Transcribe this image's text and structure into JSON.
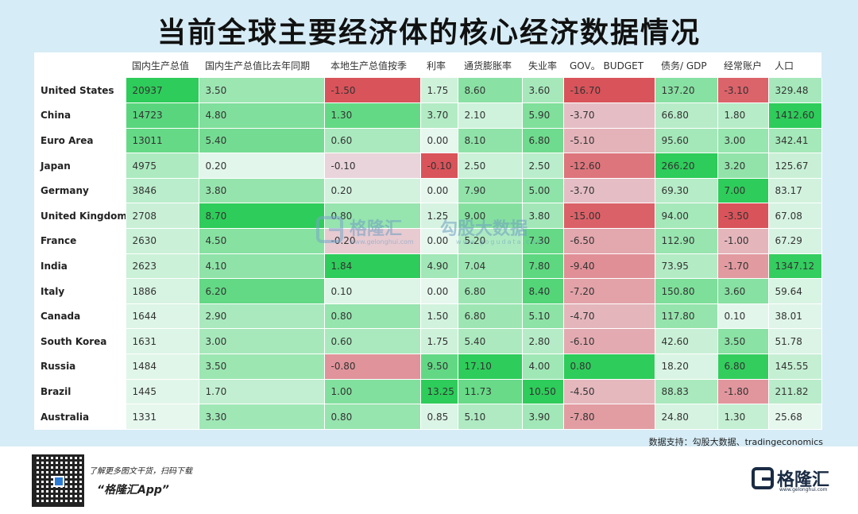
{
  "title": "当前全球主要经济体的核心经济数据情况",
  "columns": [
    "",
    "国内生产总值",
    "国内生产总值比去年同期",
    "本地生产总值按季",
    "利率",
    "通货膨胀率",
    "失业率",
    "GOV。 BUDGET",
    "债务/ GDP",
    "经常账户",
    "人口"
  ],
  "rows": [
    {
      "country": "United States",
      "cells": [
        "20937",
        "3.50",
        "-1.50",
        "1.75",
        "8.60",
        "3.60",
        "-16.70",
        "137.20",
        "-3.10",
        "329.48"
      ]
    },
    {
      "country": "China",
      "cells": [
        "14723",
        "4.80",
        "1.30",
        "3.70",
        "2.10",
        "5.90",
        "-3.70",
        "66.80",
        "1.80",
        "1412.60"
      ]
    },
    {
      "country": "Euro Area",
      "cells": [
        "13011",
        "5.40",
        "0.60",
        "0.00",
        "8.10",
        "6.80",
        "-5.10",
        "95.60",
        "3.00",
        "342.41"
      ]
    },
    {
      "country": "Japan",
      "cells": [
        "4975",
        "0.20",
        "-0.10",
        "-0.10",
        "2.50",
        "2.50",
        "-12.60",
        "266.20",
        "3.20",
        "125.67"
      ]
    },
    {
      "country": "Germany",
      "cells": [
        "3846",
        "3.80",
        "0.20",
        "0.00",
        "7.90",
        "5.00",
        "-3.70",
        "69.30",
        "7.00",
        "83.17"
      ]
    },
    {
      "country": "United Kingdom",
      "cells": [
        "2708",
        "8.70",
        "0.80",
        "1.25",
        "9.00",
        "3.80",
        "-15.00",
        "94.00",
        "-3.50",
        "67.08"
      ]
    },
    {
      "country": "France",
      "cells": [
        "2630",
        "4.50",
        "-0.20",
        "0.00",
        "5.20",
        "7.30",
        "-6.50",
        "112.90",
        "-1.00",
        "67.29"
      ]
    },
    {
      "country": "India",
      "cells": [
        "2623",
        "4.10",
        "1.84",
        "4.90",
        "7.04",
        "7.80",
        "-9.40",
        "73.95",
        "-1.70",
        "1347.12"
      ]
    },
    {
      "country": "Italy",
      "cells": [
        "1886",
        "6.20",
        "0.10",
        "0.00",
        "6.80",
        "8.40",
        "-7.20",
        "150.80",
        "3.60",
        "59.64"
      ]
    },
    {
      "country": "Canada",
      "cells": [
        "1644",
        "2.90",
        "0.80",
        "1.50",
        "6.80",
        "5.10",
        "-4.70",
        "117.80",
        "0.10",
        "38.01"
      ]
    },
    {
      "country": "South Korea",
      "cells": [
        "1631",
        "3.00",
        "0.60",
        "1.75",
        "5.40",
        "2.80",
        "-6.10",
        "42.60",
        "3.50",
        "51.78"
      ]
    },
    {
      "country": "Russia",
      "cells": [
        "1484",
        "3.50",
        "-0.80",
        "9.50",
        "17.10",
        "4.00",
        "0.80",
        "18.20",
        "6.80",
        "145.55"
      ]
    },
    {
      "country": "Brazil",
      "cells": [
        "1445",
        "1.70",
        "1.00",
        "13.25",
        "11.73",
        "10.50",
        "-4.50",
        "88.83",
        "-1.80",
        "211.82"
      ]
    },
    {
      "country": "Australia",
      "cells": [
        "1331",
        "3.30",
        "0.80",
        "0.85",
        "5.10",
        "3.90",
        "-7.80",
        "24.80",
        "1.30",
        "25.68"
      ]
    }
  ],
  "colors": {
    "positive_strong": "#2ecc5a",
    "positive_weak": "#e6f7ee",
    "negative_strong": "#d9535a",
    "negative_weak": "#e9dde3",
    "neutral": "#dfe8f0",
    "page_background": "#d6ecf6"
  },
  "watermark": {
    "brand": "格隆汇",
    "brand_url": "www.gelonghui.com",
    "data_brand": "勾股大数据",
    "data_url": "www.gogudata.com"
  },
  "source": "数据支持：勾股大数据、tradingeconomics",
  "footer": {
    "line1": "了解更多图文干货，扫码下载",
    "line2": "“格隆汇App”",
    "brand": "格隆汇",
    "brand_url": "www.gelonghui.com"
  }
}
